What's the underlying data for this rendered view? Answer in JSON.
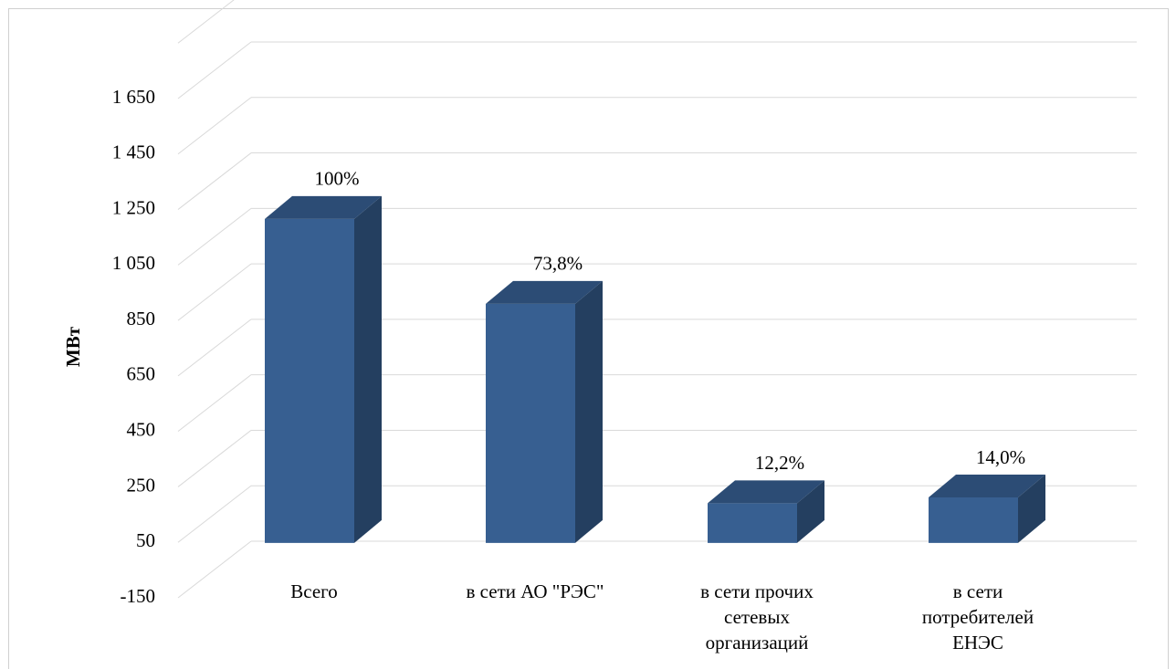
{
  "chart_data": {
    "type": "bar3d",
    "y_label": "МВт",
    "categories": [
      "Всего",
      "в сети АО \"РЭС\"",
      "в сети прочих\nсетевых\nорганизаций",
      "в сети\nпотребителей\nЕНЭС"
    ],
    "values": [
      1168,
      862,
      143,
      164
    ],
    "value_labels": [
      "100%",
      "73,8%",
      "12,2%",
      "14,0%"
    ],
    "color": "#375f91",
    "ylim": [
      -150,
      1850
    ],
    "yticks": [
      {
        "value": -150,
        "label": "-150"
      },
      50,
      250,
      450,
      650,
      850,
      {
        "value": 1050,
        "label": "1 050"
      },
      {
        "value": 1250,
        "label": "1 250"
      },
      {
        "value": 1450,
        "label": "1 450"
      },
      {
        "value": 1650,
        "label": "1 650"
      }
    ],
    "grid": true
  }
}
